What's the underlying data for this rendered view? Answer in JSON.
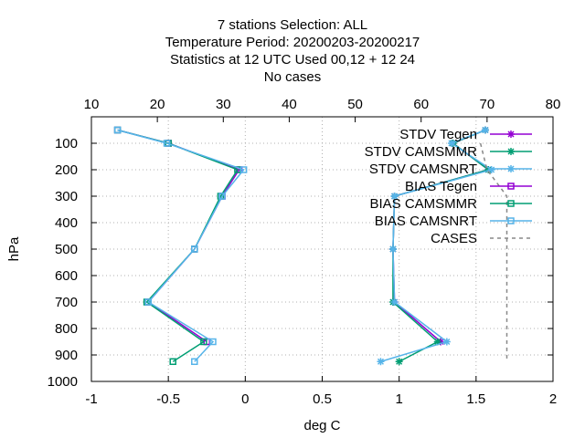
{
  "title_lines": [
    "7 stations Selection: ALL",
    "Temperature  Period: 20200203-20200217",
    "Statistics at 12 UTC  Used  00,12  + 12 24",
    "No cases"
  ],
  "chart_data": {
    "type": "line",
    "ylabel": "hPa",
    "xlabel": "deg C",
    "x_bottom_range": [
      -1,
      2
    ],
    "x_bottom_ticks": [
      "-1",
      "-0.5",
      "0",
      "0.5",
      "1",
      "1.5",
      "2"
    ],
    "x_top_range": [
      10,
      80
    ],
    "x_top_ticks": [
      "10",
      "20",
      "30",
      "40",
      "50",
      "60",
      "70",
      "80"
    ],
    "y_range": [
      1000,
      0
    ],
    "y_ticks": [
      "100",
      "200",
      "300",
      "400",
      "500",
      "600",
      "700",
      "800",
      "900",
      "1000"
    ],
    "grid": true,
    "legend_position": "top-right",
    "series": [
      {
        "name": "STDV Tegen",
        "axis": "bottom",
        "color": "#9400d3",
        "marker": "asterisk",
        "points": [
          [
            1.56,
            50
          ],
          [
            1.35,
            100
          ],
          [
            1.58,
            200
          ],
          [
            0.97,
            300
          ],
          [
            0.96,
            500
          ],
          [
            0.97,
            700
          ],
          [
            1.27,
            850
          ]
        ]
      },
      {
        "name": "STDV CAMSMMR",
        "axis": "bottom",
        "color": "#009e73",
        "marker": "asterisk",
        "points": [
          [
            1.56,
            50
          ],
          [
            1.35,
            100
          ],
          [
            1.58,
            200
          ],
          [
            0.97,
            300
          ],
          [
            0.96,
            500
          ],
          [
            0.96,
            700
          ],
          [
            1.25,
            850
          ],
          [
            1.0,
            925
          ]
        ]
      },
      {
        "name": "STDV CAMSNRT",
        "axis": "bottom",
        "color": "#56b4e9",
        "marker": "asterisk",
        "points": [
          [
            1.56,
            50
          ],
          [
            1.34,
            100
          ],
          [
            1.6,
            200
          ],
          [
            0.97,
            300
          ],
          [
            0.96,
            500
          ],
          [
            0.97,
            700
          ],
          [
            1.31,
            850
          ],
          [
            0.88,
            925
          ]
        ]
      },
      {
        "name": "BIAS Tegen",
        "axis": "bottom",
        "color": "#9400d3",
        "marker": "square",
        "points": [
          [
            -0.83,
            50
          ],
          [
            -0.5,
            100
          ],
          [
            -0.04,
            200
          ],
          [
            -0.15,
            300
          ],
          [
            -0.33,
            500
          ],
          [
            -0.63,
            700
          ],
          [
            -0.25,
            850
          ]
        ]
      },
      {
        "name": "BIAS CAMSMMR",
        "axis": "bottom",
        "color": "#009e73",
        "marker": "square",
        "points": [
          [
            -0.83,
            50
          ],
          [
            -0.5,
            100
          ],
          [
            -0.05,
            200
          ],
          [
            -0.16,
            300
          ],
          [
            -0.33,
            500
          ],
          [
            -0.64,
            700
          ],
          [
            -0.27,
            850
          ],
          [
            -0.47,
            925
          ]
        ]
      },
      {
        "name": "BIAS CAMSNRT",
        "axis": "bottom",
        "color": "#56b4e9",
        "marker": "square",
        "points": [
          [
            -0.83,
            50
          ],
          [
            -0.51,
            100
          ],
          [
            -0.01,
            200
          ],
          [
            -0.15,
            300
          ],
          [
            -0.33,
            500
          ],
          [
            -0.63,
            700
          ],
          [
            -0.21,
            850
          ],
          [
            -0.33,
            925
          ]
        ]
      },
      {
        "name": "CASES",
        "axis": "top",
        "color": "#888888",
        "marker": "none",
        "dashed": true,
        "points": [
          [
            69,
            100
          ],
          [
            70,
            200
          ],
          [
            73,
            300
          ],
          [
            73,
            500
          ],
          [
            73,
            700
          ],
          [
            73,
            850
          ],
          [
            73,
            925
          ]
        ]
      }
    ]
  }
}
